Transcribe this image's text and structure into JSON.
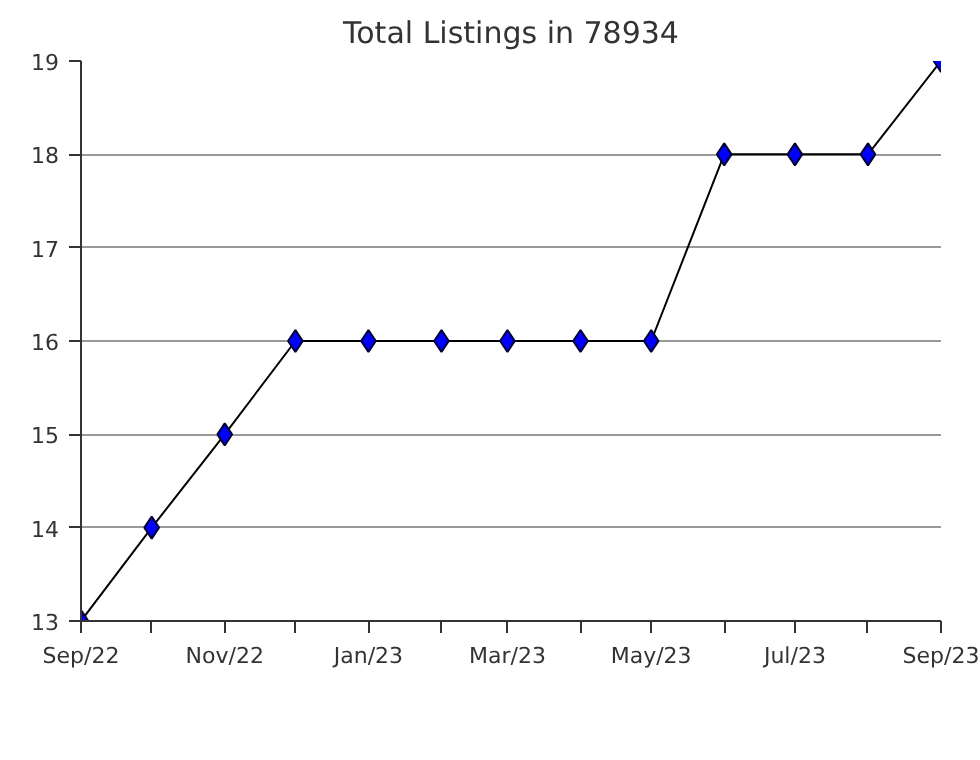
{
  "chart_data": {
    "type": "line",
    "title": "Total Listings in 78934",
    "x": [
      "2022-09",
      "2022-10",
      "2022-11",
      "2022-12",
      "2023-01",
      "2023-02",
      "2023-03",
      "2023-04",
      "2023-05",
      "2023-06",
      "2023-07",
      "2023-08",
      "2023-09"
    ],
    "series": [
      {
        "color": "#0000ff",
        "values": [
          13,
          14,
          15,
          16,
          16,
          16,
          16,
          16,
          16,
          18,
          18,
          18,
          19
        ]
      }
    ],
    "xlim": [
      "2022-09",
      "2023-09"
    ],
    "xticks": [
      {
        "value": "2022-09",
        "label": "Sep/22"
      },
      {
        "value": "2022-11",
        "label": "Nov/22"
      },
      {
        "value": "2023-01",
        "label": "Jan/23"
      },
      {
        "value": "2023-03",
        "label": "Mar/23"
      },
      {
        "value": "2023-05",
        "label": "May/23"
      },
      {
        "value": "2023-07",
        "label": "Jul/23"
      },
      {
        "value": "2023-09",
        "label": "Sep/23"
      }
    ],
    "ylim": [
      13,
      19
    ],
    "yticks": [
      13,
      14,
      15,
      16,
      17,
      18,
      19
    ],
    "grid": "y",
    "marker": "diamond",
    "line_style": "solid"
  }
}
